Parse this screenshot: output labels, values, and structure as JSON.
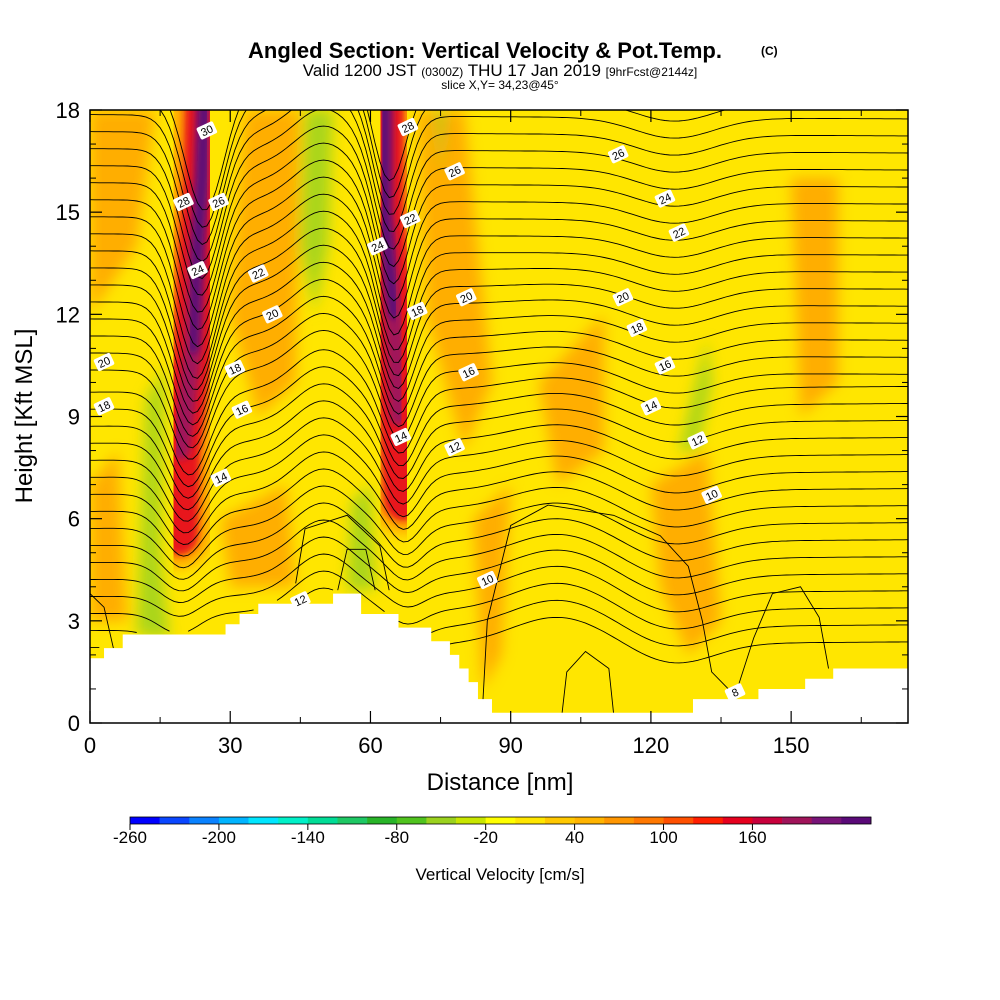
{
  "title": {
    "main": "Angled Section: Vertical Velocity & Pot.Temp.",
    "main_unit": "(C)",
    "valid_prefix": "Valid 1200 JST",
    "valid_utc": "(0300Z)",
    "valid_date": "THU 17 Jan 2019",
    "forecast": "[9hrFcst@2144z]",
    "slice": "slice X,Y= 34,23@45°"
  },
  "colors": {
    "background_field": "#ffe600",
    "updraft_strong": "#5a0a78",
    "updraft_red": "#e8141e",
    "updraft_orange": "#ff9b00",
    "downdraft_green": "#9bd21e",
    "contour": "#000000",
    "terrain": "#ffffff"
  },
  "chart_data": {
    "type": "heatmap",
    "xlabel": "Distance [nm]",
    "ylabel": "Height [Kft MSL]",
    "xlim": [
      0,
      175
    ],
    "ylim": [
      0,
      18
    ],
    "xticks": [
      0,
      30,
      60,
      90,
      120,
      150
    ],
    "yticks": [
      0,
      3,
      6,
      9,
      12,
      15,
      18
    ],
    "colorbar": {
      "label": "Vertical Velocity [cm/s]",
      "ticks": [
        "-260",
        "-200",
        "-140",
        "-80",
        "-20",
        "40",
        "100",
        "160"
      ],
      "colors": [
        "#0000ff",
        "#0a46ff",
        "#0a82ff",
        "#00b4ff",
        "#00e6ff",
        "#00f0c8",
        "#00dc96",
        "#1ec864",
        "#28b428",
        "#50c31e",
        "#9bd21e",
        "#c8e600",
        "#ffff00",
        "#ffe600",
        "#ffc800",
        "#ffb400",
        "#ff9600",
        "#ff7800",
        "#ff5000",
        "#ff1e00",
        "#e6001e",
        "#c8003c",
        "#a0145a",
        "#781478",
        "#5a0a78"
      ]
    },
    "updrafts": [
      {
        "name": "updraft-1",
        "x_top": 25,
        "x_bottom": 20,
        "y_bottom": 6,
        "y_top": 18,
        "peak_cm_s": 180
      },
      {
        "name": "updraft-2",
        "x_top": 66,
        "x_bottom": 67,
        "y_bottom": 7,
        "y_top": 18,
        "peak_cm_s": 180
      }
    ],
    "terrain_height_kft": [
      [
        0,
        1.9
      ],
      [
        3,
        1.9
      ],
      [
        3,
        2.2
      ],
      [
        7,
        2.2
      ],
      [
        7,
        2.6
      ],
      [
        29,
        2.6
      ],
      [
        29,
        2.9
      ],
      [
        32,
        2.9
      ],
      [
        32,
        3.2
      ],
      [
        36,
        3.2
      ],
      [
        36,
        3.5
      ],
      [
        52,
        3.5
      ],
      [
        52,
        3.8
      ],
      [
        58,
        3.8
      ],
      [
        58,
        3.2
      ],
      [
        66,
        3.2
      ],
      [
        66,
        2.8
      ],
      [
        73,
        2.8
      ],
      [
        73,
        2.4
      ],
      [
        77,
        2.4
      ],
      [
        77,
        2.0
      ],
      [
        79,
        2.0
      ],
      [
        79,
        1.6
      ],
      [
        81,
        1.6
      ],
      [
        81,
        1.2
      ],
      [
        83,
        1.2
      ],
      [
        83,
        0.7
      ],
      [
        86,
        0.7
      ],
      [
        86,
        0.3
      ],
      [
        129,
        0.3
      ],
      [
        129,
        0.7
      ],
      [
        143,
        0.7
      ],
      [
        143,
        1.0
      ],
      [
        153,
        1.0
      ],
      [
        153,
        1.3
      ],
      [
        159,
        1.3
      ],
      [
        159,
        1.6
      ],
      [
        175,
        1.6
      ]
    ],
    "contour_labels": [
      {
        "text": "30",
        "x": 25,
        "y": 17.4
      },
      {
        "text": "28",
        "x": 20,
        "y": 15.3
      },
      {
        "text": "26",
        "x": 27.5,
        "y": 15.3
      },
      {
        "text": "24",
        "x": 23,
        "y": 13.3
      },
      {
        "text": "22",
        "x": 36,
        "y": 13.2
      },
      {
        "text": "20",
        "x": 39,
        "y": 12.0
      },
      {
        "text": "18",
        "x": 31,
        "y": 10.4
      },
      {
        "text": "16",
        "x": 32.5,
        "y": 9.2
      },
      {
        "text": "14",
        "x": 28,
        "y": 7.2
      },
      {
        "text": "20",
        "x": 3,
        "y": 10.6
      },
      {
        "text": "18",
        "x": 3,
        "y": 9.3
      },
      {
        "text": "12",
        "x": 45,
        "y": 3.6
      },
      {
        "text": "28",
        "x": 68,
        "y": 17.5
      },
      {
        "text": "26",
        "x": 78,
        "y": 16.2
      },
      {
        "text": "24",
        "x": 61.5,
        "y": 14.0
      },
      {
        "text": "22",
        "x": 68.5,
        "y": 14.8
      },
      {
        "text": "18",
        "x": 70,
        "y": 12.1
      },
      {
        "text": "20",
        "x": 80.5,
        "y": 12.5
      },
      {
        "text": "16",
        "x": 81,
        "y": 10.3
      },
      {
        "text": "14",
        "x": 66.5,
        "y": 8.4
      },
      {
        "text": "12",
        "x": 78,
        "y": 8.1
      },
      {
        "text": "10",
        "x": 85,
        "y": 4.2
      },
      {
        "text": "26",
        "x": 113,
        "y": 16.7
      },
      {
        "text": "24",
        "x": 123,
        "y": 15.4
      },
      {
        "text": "22",
        "x": 126,
        "y": 14.4
      },
      {
        "text": "20",
        "x": 114,
        "y": 12.5
      },
      {
        "text": "18",
        "x": 117,
        "y": 11.6
      },
      {
        "text": "16",
        "x": 123,
        "y": 10.5
      },
      {
        "text": "14",
        "x": 120,
        "y": 9.3
      },
      {
        "text": "12",
        "x": 130,
        "y": 8.3
      },
      {
        "text": "10",
        "x": 133,
        "y": 6.7
      },
      {
        "text": "8",
        "x": 138,
        "y": 0.9
      }
    ]
  }
}
